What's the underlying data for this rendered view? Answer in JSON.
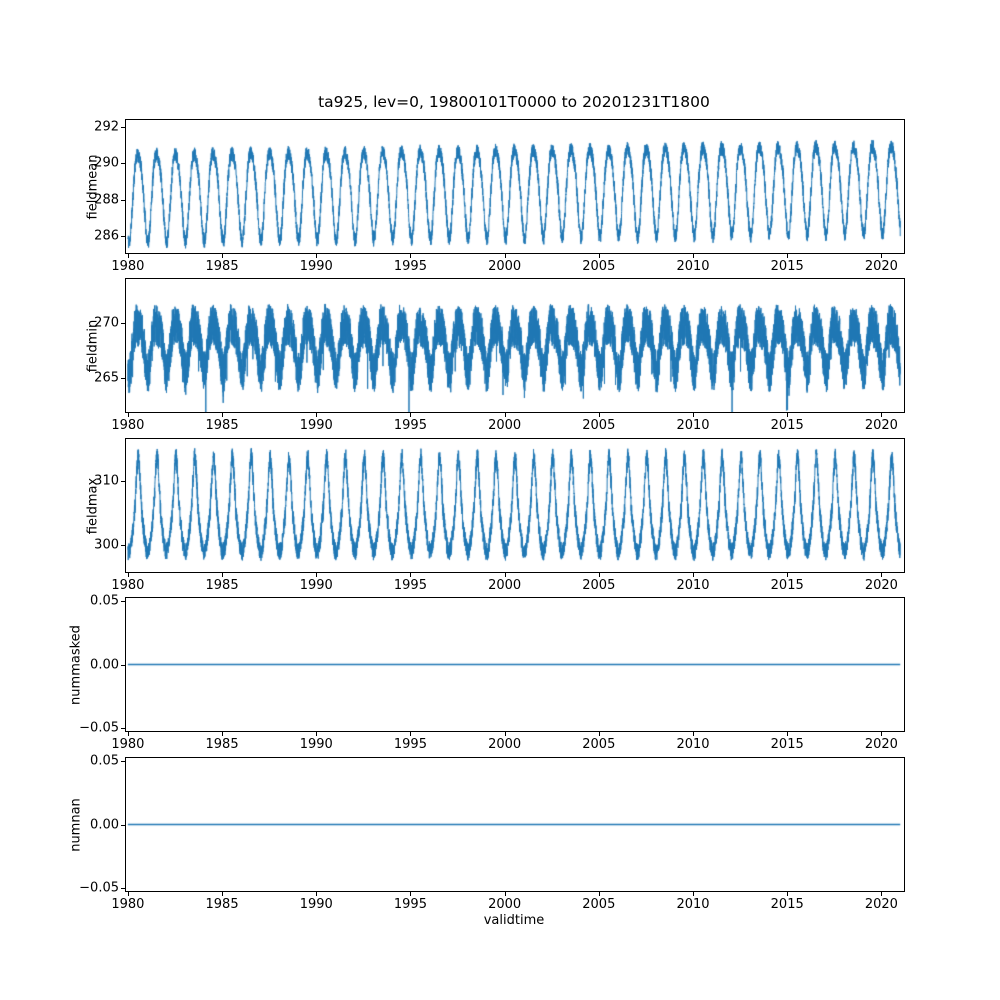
{
  "figure": {
    "title": "ta925, lev=0, 19800101T0000 to 20201231T1800",
    "xlabel": "validtime",
    "line_color": "#1f77b4",
    "background_color": "#ffffff",
    "axis_color": "#000000"
  },
  "chart_data": [
    {
      "type": "line",
      "ylabel": "fieldmean",
      "xlim": [
        1979.9,
        2021.2
      ],
      "xticks": [
        1980,
        1985,
        1990,
        1995,
        2000,
        2005,
        2010,
        2015,
        2020
      ],
      "xtick_labels": [
        "1980",
        "1985",
        "1990",
        "1995",
        "2000",
        "2005",
        "2010",
        "2015",
        "2020"
      ],
      "ylim": [
        285.05,
        292.4
      ],
      "yticks": [
        286,
        288,
        290,
        292
      ],
      "ytick_labels": [
        "286",
        "288",
        "290",
        "292"
      ],
      "legend": "off",
      "grid": "off",
      "series": {
        "name": "fieldmean",
        "kind": "seasonal",
        "x_start": 1980.0,
        "x_end": 2021.0,
        "base": 288.6,
        "trend_per_year": 0.012,
        "annual_amplitude": 2.4,
        "semiannual_amplitude": 0.35,
        "peak_boost": 0,
        "noise_amplitude": 0.4,
        "spike_prob": 0,
        "spike_amplitude": 0,
        "phase": 0.3,
        "points_per_year": 160,
        "seed": 11,
        "approx_min": 285.4,
        "approx_max": 292.1,
        "approx_mean": 288.6,
        "period_years": 1
      }
    },
    {
      "type": "line",
      "ylabel": "fieldmin",
      "xlim": [
        1979.9,
        2021.2
      ],
      "xticks": [
        1980,
        1985,
        1990,
        1995,
        2000,
        2005,
        2010,
        2015,
        2020
      ],
      "xtick_labels": [
        "1980",
        "1985",
        "1990",
        "1995",
        "2000",
        "2005",
        "2010",
        "2015",
        "2020"
      ],
      "ylim": [
        261.9,
        274.0
      ],
      "yticks": [
        265,
        270
      ],
      "ytick_labels": [
        "265",
        "270"
      ],
      "legend": "off",
      "grid": "off",
      "series": {
        "name": "fieldmin",
        "kind": "seasonal",
        "x_start": 1980.0,
        "x_end": 2021.0,
        "base": 268.1,
        "trend_per_year": 0.0,
        "annual_amplitude": 2.1,
        "semiannual_amplitude": 0.5,
        "peak_boost": 0,
        "noise_amplitude": 1.9,
        "spike_prob": 0.012,
        "spike_amplitude": 3.5,
        "phase": 0.3,
        "points_per_year": 220,
        "seed": 22,
        "approx_min": 262.2,
        "approx_max": 273.6,
        "approx_mean": 268.1,
        "period_years": 1
      }
    },
    {
      "type": "line",
      "ylabel": "fieldmax",
      "xlim": [
        1979.9,
        2021.2
      ],
      "xticks": [
        1980,
        1985,
        1990,
        1995,
        2000,
        2005,
        2010,
        2015,
        2020
      ],
      "xtick_labels": [
        "1980",
        "1985",
        "1990",
        "1995",
        "2000",
        "2005",
        "2010",
        "2015",
        "2020"
      ],
      "ylim": [
        295.9,
        316.4
      ],
      "yticks": [
        300,
        310
      ],
      "ytick_labels": [
        "300",
        "310"
      ],
      "legend": "off",
      "grid": "off",
      "series": {
        "name": "fieldmax",
        "kind": "seasonal",
        "x_start": 1980.0,
        "x_end": 2021.0,
        "base": 303.3,
        "trend_per_year": 0.0,
        "annual_amplitude": 4.3,
        "semiannual_amplitude": 0.0,
        "peak_boost": 6.0,
        "noise_amplitude": 1.4,
        "spike_prob": 0,
        "spike_amplitude": 0,
        "phase": 0.3,
        "points_per_year": 180,
        "seed": 33,
        "approx_min": 297.6,
        "approx_max": 315.6,
        "approx_mean": 304.5,
        "period_years": 1
      }
    },
    {
      "type": "line",
      "ylabel": "nummasked",
      "xlim": [
        1979.9,
        2021.2
      ],
      "xticks": [
        1980,
        1985,
        1990,
        1995,
        2000,
        2005,
        2010,
        2015,
        2020
      ],
      "xtick_labels": [
        "1980",
        "1985",
        "1990",
        "1995",
        "2000",
        "2005",
        "2010",
        "2015",
        "2020"
      ],
      "ylim": [
        -0.0525,
        0.0525
      ],
      "yticks": [
        -0.05,
        0.0,
        0.05
      ],
      "ytick_labels": [
        "−0.05",
        "0.00",
        "0.05"
      ],
      "legend": "off",
      "grid": "off",
      "series": {
        "name": "nummasked",
        "kind": "constant",
        "x_start": 1980.0,
        "x_end": 2021.0,
        "value": 0.0,
        "approx_min": 0.0,
        "approx_max": 0.0,
        "approx_mean": 0.0
      }
    },
    {
      "type": "line",
      "ylabel": "numnan",
      "xlim": [
        1979.9,
        2021.2
      ],
      "xticks": [
        1980,
        1985,
        1990,
        1995,
        2000,
        2005,
        2010,
        2015,
        2020
      ],
      "xtick_labels": [
        "1980",
        "1985",
        "1990",
        "1995",
        "2000",
        "2005",
        "2010",
        "2015",
        "2020"
      ],
      "ylim": [
        -0.0525,
        0.0525
      ],
      "yticks": [
        -0.05,
        0.0,
        0.05
      ],
      "ytick_labels": [
        "−0.05",
        "0.00",
        "0.05"
      ],
      "legend": "off",
      "grid": "off",
      "series": {
        "name": "numnan",
        "kind": "constant",
        "x_start": 1980.0,
        "x_end": 2021.0,
        "value": 0.0,
        "approx_min": 0.0,
        "approx_max": 0.0,
        "approx_mean": 0.0
      }
    }
  ]
}
